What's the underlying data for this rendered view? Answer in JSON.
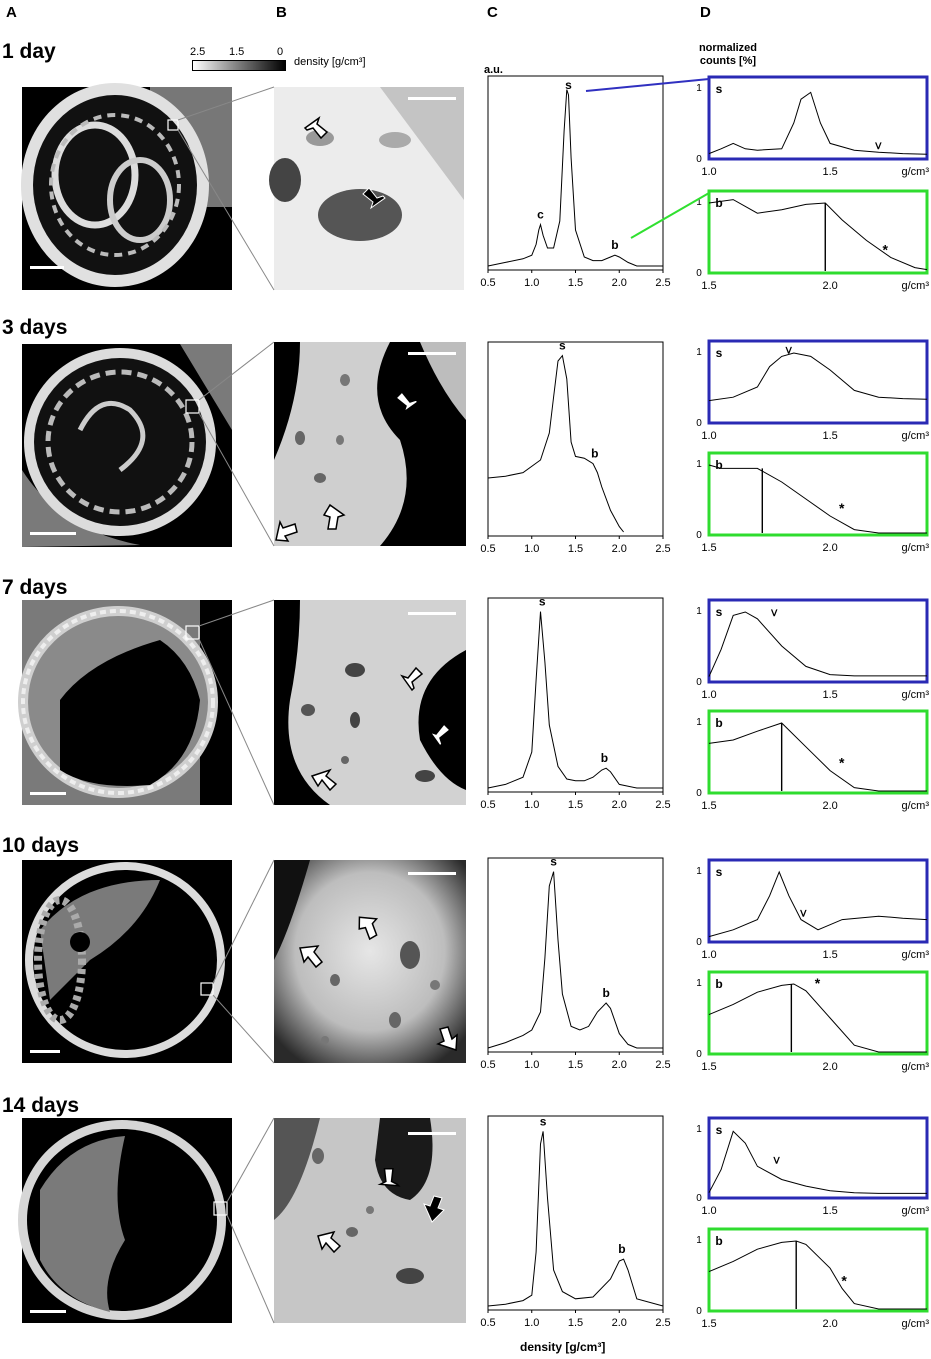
{
  "column_labels": [
    "A",
    "B",
    "C",
    "D"
  ],
  "day_labels": [
    "1 day",
    "3 days",
    "7 days",
    "10 days",
    "14 days"
  ],
  "colorbar": {
    "ticks": [
      "2.5",
      "1.5",
      "0"
    ],
    "label": "density [g/cm³]"
  },
  "c_yaxis_label": "a.u.",
  "c_xaxis_label": "density [g/cm³]",
  "d_yaxis_label": "normalized counts [%]",
  "d_unit": "g/cm³",
  "colors": {
    "blue_panel": "#2a2ab4",
    "green_panel": "#2fdc2f",
    "connector_blue": "#3030c0",
    "connector_green": "#30e030"
  },
  "chart_data": [
    {
      "type": "line",
      "panel": "C",
      "row": "1 day",
      "xlim": [
        0.5,
        2.5
      ],
      "ticks": [
        "0.5",
        "1.0",
        "1.5",
        "2.0",
        "2.5"
      ],
      "xlabel": "",
      "ylabel": "a.u.",
      "x": [
        0.5,
        0.7,
        0.9,
        1.0,
        1.05,
        1.08,
        1.1,
        1.13,
        1.18,
        1.25,
        1.32,
        1.37,
        1.4,
        1.42,
        1.45,
        1.5,
        1.6,
        1.7,
        1.8,
        1.9,
        1.95,
        2.0,
        2.1,
        2.2,
        2.5
      ],
      "y": [
        0.0,
        0.02,
        0.04,
        0.06,
        0.12,
        0.2,
        0.23,
        0.17,
        0.1,
        0.1,
        0.25,
        0.75,
        0.98,
        0.95,
        0.6,
        0.2,
        0.05,
        0.03,
        0.03,
        0.05,
        0.06,
        0.05,
        0.02,
        0.0,
        0.0
      ],
      "annotations": [
        {
          "text": "s",
          "x": 1.42
        },
        {
          "text": "c",
          "x": 1.1
        },
        {
          "text": "b",
          "x": 1.95
        }
      ]
    },
    {
      "type": "line",
      "panel": "C",
      "row": "3 days",
      "xlim": [
        0.5,
        2.5
      ],
      "ticks": [
        "0.5",
        "1.0",
        "1.5",
        "2.0",
        "2.5"
      ],
      "x": [
        0.5,
        0.7,
        0.9,
        1.1,
        1.2,
        1.25,
        1.3,
        1.35,
        1.4,
        1.45,
        1.5,
        1.6,
        1.7,
        1.75,
        1.8,
        1.9,
        2.0,
        2.05
      ],
      "y": [
        0.3,
        0.31,
        0.33,
        0.4,
        0.55,
        0.75,
        0.95,
        0.98,
        0.85,
        0.5,
        0.42,
        0.41,
        0.38,
        0.33,
        0.25,
        0.12,
        0.03,
        0.0
      ],
      "annotations": [
        {
          "text": "s",
          "x": 1.35
        },
        {
          "text": "b",
          "x": 1.72
        }
      ]
    },
    {
      "type": "line",
      "panel": "C",
      "row": "7 days",
      "xlim": [
        0.5,
        2.5
      ],
      "ticks": [
        "0.5",
        "1.0",
        "1.5",
        "2.0",
        "2.5"
      ],
      "x": [
        0.5,
        0.7,
        0.9,
        1.0,
        1.05,
        1.1,
        1.15,
        1.2,
        1.3,
        1.4,
        1.5,
        1.6,
        1.7,
        1.8,
        1.85,
        1.9,
        2.0,
        2.2,
        2.5
      ],
      "y": [
        0.0,
        0.02,
        0.06,
        0.2,
        0.6,
        0.98,
        0.7,
        0.35,
        0.12,
        0.05,
        0.04,
        0.04,
        0.06,
        0.1,
        0.11,
        0.09,
        0.02,
        0.0,
        0.0
      ],
      "annotations": [
        {
          "text": "s",
          "x": 1.12
        },
        {
          "text": "b",
          "x": 1.83
        }
      ]
    },
    {
      "type": "line",
      "panel": "C",
      "row": "10 days",
      "xlim": [
        0.5,
        2.5
      ],
      "ticks": [
        "0.5",
        "1.0",
        "1.5",
        "2.0",
        "2.5"
      ],
      "x": [
        0.5,
        0.7,
        0.9,
        1.0,
        1.1,
        1.15,
        1.2,
        1.25,
        1.3,
        1.35,
        1.45,
        1.55,
        1.65,
        1.75,
        1.85,
        1.9,
        2.0,
        2.1,
        2.2,
        2.5
      ],
      "y": [
        0.0,
        0.03,
        0.07,
        0.1,
        0.2,
        0.5,
        0.9,
        0.98,
        0.6,
        0.3,
        0.12,
        0.1,
        0.12,
        0.2,
        0.25,
        0.22,
        0.08,
        0.02,
        0.0,
        0.0
      ],
      "annotations": [
        {
          "text": "s",
          "x": 1.25
        },
        {
          "text": "b",
          "x": 1.85
        }
      ]
    },
    {
      "type": "line",
      "panel": "C",
      "row": "14 days",
      "xlim": [
        0.5,
        2.5
      ],
      "ticks": [
        "0.5",
        "1.0",
        "1.5",
        "2.0",
        "2.5"
      ],
      "x": [
        0.5,
        0.7,
        0.9,
        1.0,
        1.05,
        1.1,
        1.13,
        1.18,
        1.25,
        1.35,
        1.5,
        1.7,
        1.9,
        2.0,
        2.05,
        2.1,
        2.2,
        2.5
      ],
      "y": [
        0.0,
        0.01,
        0.03,
        0.06,
        0.3,
        0.9,
        0.97,
        0.6,
        0.2,
        0.08,
        0.04,
        0.05,
        0.15,
        0.25,
        0.26,
        0.2,
        0.04,
        0.0
      ],
      "annotations": [
        {
          "text": "s",
          "x": 1.13
        },
        {
          "text": "b",
          "x": 2.03
        }
      ]
    },
    {
      "type": "line",
      "panel": "D",
      "row": "1 day",
      "series": "s",
      "xlim": [
        1.0,
        1.9
      ],
      "ticks": [
        "1.0",
        "1.5"
      ],
      "ylim": [
        0,
        1
      ],
      "x": [
        1.0,
        1.05,
        1.1,
        1.15,
        1.2,
        1.3,
        1.35,
        1.38,
        1.42,
        1.46,
        1.5,
        1.6,
        1.7,
        1.8,
        1.9
      ],
      "y": [
        0.05,
        0.12,
        0.2,
        0.12,
        0.1,
        0.12,
        0.5,
        0.85,
        0.95,
        0.5,
        0.2,
        0.1,
        0.07,
        0.05,
        0.04
      ],
      "annotations": [
        {
          "text": "s"
        },
        {
          "text": "^",
          "x": 1.67
        }
      ]
    },
    {
      "type": "line",
      "panel": "D",
      "row": "1 day",
      "series": "b",
      "xlim": [
        1.5,
        2.4
      ],
      "ticks": [
        "1.5",
        "2.0"
      ],
      "ylim": [
        0,
        1
      ],
      "x": [
        1.5,
        1.6,
        1.7,
        1.8,
        1.9,
        1.98,
        2.05,
        2.15,
        2.25,
        2.35,
        2.4
      ],
      "y": [
        1.0,
        1.05,
        0.85,
        0.9,
        0.98,
        1.0,
        0.75,
        0.45,
        0.2,
        0.05,
        0.02
      ],
      "marker_x": 1.98,
      "annotations": [
        {
          "text": "b"
        },
        {
          "text": "*",
          "x": 2.2
        }
      ]
    },
    {
      "type": "line",
      "panel": "D",
      "row": "3 days",
      "series": "s",
      "xlim": [
        1.0,
        1.9
      ],
      "ticks": [
        "1.0",
        "1.5"
      ],
      "ylim": [
        0,
        1
      ],
      "x": [
        1.0,
        1.1,
        1.2,
        1.25,
        1.3,
        1.35,
        1.42,
        1.5,
        1.6,
        1.7,
        1.8,
        1.9
      ],
      "y": [
        0.3,
        0.35,
        0.5,
        0.8,
        0.95,
        1.0,
        0.95,
        0.75,
        0.45,
        0.35,
        0.33,
        0.32
      ],
      "annotations": [
        {
          "text": "s"
        },
        {
          "text": "^",
          "x": 1.3
        }
      ]
    },
    {
      "type": "line",
      "panel": "D",
      "row": "3 days",
      "series": "b",
      "xlim": [
        1.5,
        2.4
      ],
      "ticks": [
        "1.5",
        "2.0"
      ],
      "ylim": [
        0,
        1
      ],
      "x": [
        1.5,
        1.55,
        1.6,
        1.7,
        1.8,
        1.9,
        2.0,
        2.1,
        2.2,
        2.4
      ],
      "y": [
        1.0,
        0.95,
        0.95,
        0.95,
        0.75,
        0.5,
        0.25,
        0.05,
        0.0,
        0.0
      ],
      "marker_x": 1.72,
      "annotations": [
        {
          "text": "b"
        },
        {
          "text": "*",
          "x": 2.02
        }
      ]
    },
    {
      "type": "line",
      "panel": "D",
      "row": "7 days",
      "series": "s",
      "xlim": [
        1.0,
        1.9
      ],
      "ticks": [
        "1.0",
        "1.5"
      ],
      "ylim": [
        0,
        1
      ],
      "x": [
        1.0,
        1.05,
        1.1,
        1.15,
        1.2,
        1.3,
        1.4,
        1.5,
        1.6,
        1.7,
        1.8,
        1.9
      ],
      "y": [
        0.05,
        0.45,
        0.95,
        1.0,
        0.9,
        0.5,
        0.2,
        0.08,
        0.06,
        0.06,
        0.06,
        0.06
      ],
      "annotations": [
        {
          "text": "s"
        },
        {
          "text": "^",
          "x": 1.24
        }
      ]
    },
    {
      "type": "line",
      "panel": "D",
      "row": "7 days",
      "series": "b",
      "xlim": [
        1.5,
        2.4
      ],
      "ticks": [
        "1.5",
        "2.0"
      ],
      "ylim": [
        0,
        1
      ],
      "x": [
        1.5,
        1.6,
        1.7,
        1.8,
        1.9,
        2.0,
        2.1,
        2.2,
        2.4
      ],
      "y": [
        0.7,
        0.75,
        0.88,
        1.0,
        0.65,
        0.3,
        0.05,
        0.0,
        0.0
      ],
      "marker_x": 1.8,
      "annotations": [
        {
          "text": "b"
        },
        {
          "text": "*",
          "x": 2.02
        }
      ]
    },
    {
      "type": "line",
      "panel": "D",
      "row": "10 days",
      "series": "s",
      "xlim": [
        1.0,
        1.9
      ],
      "ticks": [
        "1.0",
        "1.5"
      ],
      "ylim": [
        0,
        1
      ],
      "x": [
        1.0,
        1.1,
        1.2,
        1.25,
        1.29,
        1.33,
        1.38,
        1.45,
        1.55,
        1.7,
        1.8,
        1.9
      ],
      "y": [
        0.05,
        0.15,
        0.3,
        0.65,
        1.0,
        0.65,
        0.3,
        0.15,
        0.3,
        0.35,
        0.32,
        0.3
      ],
      "annotations": [
        {
          "text": "s"
        },
        {
          "text": "^",
          "x": 1.36
        }
      ]
    },
    {
      "type": "line",
      "panel": "D",
      "row": "10 days",
      "series": "b",
      "xlim": [
        1.5,
        2.4
      ],
      "ticks": [
        "1.5",
        "2.0"
      ],
      "ylim": [
        0,
        1
      ],
      "x": [
        1.5,
        1.6,
        1.7,
        1.8,
        1.85,
        1.9,
        2.0,
        2.1,
        2.2,
        2.4
      ],
      "y": [
        0.55,
        0.7,
        0.88,
        0.98,
        1.0,
        0.9,
        0.5,
        0.1,
        0.0,
        0.0
      ],
      "marker_x": 1.84,
      "annotations": [
        {
          "text": "b"
        },
        {
          "text": "*",
          "x": 1.92
        }
      ]
    },
    {
      "type": "line",
      "panel": "D",
      "row": "14 days",
      "series": "s",
      "xlim": [
        1.0,
        1.9
      ],
      "ticks": [
        "1.0",
        "1.5"
      ],
      "ylim": [
        0,
        1
      ],
      "x": [
        1.0,
        1.05,
        1.1,
        1.15,
        1.2,
        1.3,
        1.4,
        1.5,
        1.6,
        1.7,
        1.8,
        1.9
      ],
      "y": [
        0.05,
        0.4,
        0.98,
        0.8,
        0.45,
        0.25,
        0.15,
        0.08,
        0.05,
        0.04,
        0.04,
        0.04
      ],
      "annotations": [
        {
          "text": "s"
        },
        {
          "text": "^",
          "x": 1.25
        }
      ]
    },
    {
      "type": "line",
      "panel": "D",
      "row": "14 days",
      "series": "b",
      "xlim": [
        1.5,
        2.4
      ],
      "ticks": [
        "1.5",
        "2.0"
      ],
      "ylim": [
        0,
        1
      ],
      "x": [
        1.5,
        1.6,
        1.7,
        1.8,
        1.86,
        1.9,
        2.0,
        2.05,
        2.1,
        2.2,
        2.4
      ],
      "y": [
        0.55,
        0.7,
        0.88,
        0.98,
        1.0,
        0.95,
        0.6,
        0.3,
        0.08,
        0.0,
        0.0
      ],
      "marker_x": 1.86,
      "annotations": [
        {
          "text": "b"
        },
        {
          "text": "*",
          "x": 2.03
        }
      ]
    }
  ]
}
